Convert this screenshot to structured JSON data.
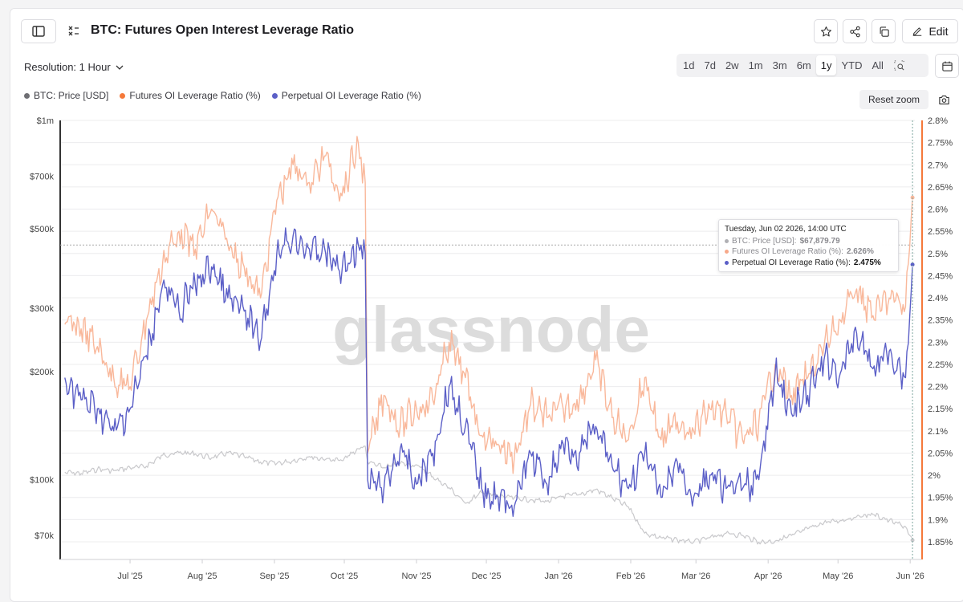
{
  "header": {
    "title": "BTC: Futures Open Interest Leverage Ratio",
    "edit_label": "Edit",
    "resolution_label": "Resolution: 1 Hour",
    "ranges": [
      "1d",
      "7d",
      "2w",
      "1m",
      "3m",
      "6m",
      "1y",
      "YTD",
      "All"
    ],
    "active_range": "1y",
    "reset_zoom_label": "Reset zoom",
    "watermark": "glassnode"
  },
  "legend": [
    {
      "label": "BTC: Price [USD]",
      "color": "#6e6e73"
    },
    {
      "label": "Futures OI Leverage Ratio (%)",
      "color": "#f5793a"
    },
    {
      "label": "Perpetual OI Leverage Ratio (%)",
      "color": "#5b5fc7"
    }
  ],
  "tooltip": {
    "date": "Tuesday, Jun 02 2026, 14:00 UTC",
    "rows": [
      {
        "label": "BTC: Price [USD]:",
        "value": "$67,879.79",
        "color": "#b0b0b4"
      },
      {
        "label": "Futures OI Leverage Ratio (%):",
        "value": "2.626%",
        "color": "#f7a98a"
      },
      {
        "label": "Perpetual OI Leverage Ratio (%):",
        "value": "2.475%",
        "color": "#5b5fc7"
      }
    ]
  },
  "chart_data": {
    "type": "line",
    "left_axis": {
      "label": "",
      "scale": "log",
      "ticks": [
        {
          "label": "$1m",
          "value": 1000000
        },
        {
          "label": "$700k",
          "value": 700000
        },
        {
          "label": "$500k",
          "value": 500000
        },
        {
          "label": "$300k",
          "value": 300000
        },
        {
          "label": "$200k",
          "value": 200000
        },
        {
          "label": "$100k",
          "value": 100000
        },
        {
          "label": "$70k",
          "value": 70000
        }
      ]
    },
    "right_axis": {
      "label": "",
      "range": [
        1.83,
        2.8
      ],
      "ticks": [
        "2.8%",
        "2.75%",
        "2.7%",
        "2.65%",
        "2.6%",
        "2.55%",
        "2.5%",
        "2.45%",
        "2.4%",
        "2.35%",
        "2.3%",
        "2.25%",
        "2.2%",
        "2.15%",
        "2.1%",
        "2.05%",
        "2%",
        "1.95%",
        "1.9%",
        "1.85%"
      ],
      "tick_values": [
        2.8,
        2.75,
        2.7,
        2.65,
        2.6,
        2.55,
        2.5,
        2.45,
        2.4,
        2.35,
        2.3,
        2.25,
        2.2,
        2.15,
        2.1,
        2.05,
        2.0,
        1.95,
        1.9,
        1.85
      ]
    },
    "x_axis": {
      "labels": [
        "Jul '25",
        "Aug '25",
        "Sep '25",
        "Oct '25",
        "Nov '25",
        "Dec '25",
        "Jan '26",
        "Feb '26",
        "Mar '26",
        "Apr '26",
        "May '26",
        "Jun '26"
      ],
      "label_dates": [
        "2025-07-01",
        "2025-08-01",
        "2025-09-01",
        "2025-10-01",
        "2025-11-01",
        "2025-12-01",
        "2026-01-01",
        "2026-02-01",
        "2026-03-01",
        "2026-04-01",
        "2026-05-01",
        "2026-06-01"
      ]
    },
    "dates": [
      "2025-06-03",
      "2025-06-10",
      "2025-06-17",
      "2025-06-24",
      "2025-07-01",
      "2025-07-08",
      "2025-07-15",
      "2025-07-22",
      "2025-07-29",
      "2025-08-05",
      "2025-08-12",
      "2025-08-19",
      "2025-08-26",
      "2025-09-02",
      "2025-09-09",
      "2025-09-16",
      "2025-09-23",
      "2025-09-30",
      "2025-10-07",
      "2025-10-10",
      "2025-10-11",
      "2025-10-18",
      "2025-10-25",
      "2025-11-01",
      "2025-11-08",
      "2025-11-15",
      "2025-11-22",
      "2025-11-29",
      "2025-12-06",
      "2025-12-13",
      "2025-12-20",
      "2025-12-27",
      "2026-01-03",
      "2026-01-10",
      "2026-01-17",
      "2026-01-24",
      "2026-01-31",
      "2026-02-07",
      "2026-02-14",
      "2026-02-21",
      "2026-02-28",
      "2026-03-07",
      "2026-03-14",
      "2026-03-21",
      "2026-03-28",
      "2026-04-04",
      "2026-04-11",
      "2026-04-18",
      "2026-04-25",
      "2026-05-02",
      "2026-05-09",
      "2026-05-16",
      "2026-05-23",
      "2026-05-30",
      "2026-06-02"
    ],
    "series": [
      {
        "name": "BTC: Price [USD]",
        "axis": "left",
        "color": "#c9c9cc",
        "values": [
          105000,
          104000,
          107000,
          106000,
          108000,
          109000,
          117000,
          119000,
          118000,
          115000,
          119000,
          116000,
          112000,
          111000,
          113000,
          116000,
          114000,
          113000,
          122000,
          124000,
          112000,
          108000,
          111000,
          110000,
          102000,
          95000,
          86000,
          92000,
          90000,
          89000,
          88000,
          87000,
          90000,
          91000,
          94000,
          89000,
          84000,
          71000,
          69000,
          68000,
          67000,
          69000,
          71000,
          70000,
          67000,
          67500,
          70000,
          73000,
          76000,
          77000,
          79000,
          80000,
          77000,
          74000,
          67879.79
        ]
      },
      {
        "name": "Futures OI Leverage Ratio (%)",
        "axis": "right",
        "color": "#f9b89b",
        "values": [
          2.34,
          2.33,
          2.29,
          2.22,
          2.2,
          2.35,
          2.48,
          2.55,
          2.51,
          2.6,
          2.52,
          2.47,
          2.4,
          2.62,
          2.7,
          2.66,
          2.72,
          2.63,
          2.75,
          2.66,
          2.05,
          2.18,
          2.11,
          2.15,
          2.17,
          2.3,
          2.22,
          2.09,
          2.07,
          2.04,
          2.16,
          2.13,
          2.15,
          2.17,
          2.26,
          2.13,
          2.08,
          2.22,
          2.08,
          2.12,
          2.1,
          2.15,
          2.14,
          2.08,
          2.12,
          2.25,
          2.18,
          2.22,
          2.29,
          2.35,
          2.42,
          2.36,
          2.4,
          2.38,
          2.626
        ]
      },
      {
        "name": "Perpetual OI Leverage Ratio (%)",
        "axis": "right",
        "color": "#5b5fc7",
        "values": [
          2.22,
          2.17,
          2.15,
          2.1,
          2.15,
          2.27,
          2.43,
          2.37,
          2.43,
          2.47,
          2.4,
          2.37,
          2.3,
          2.5,
          2.54,
          2.51,
          2.5,
          2.46,
          2.52,
          2.5,
          1.99,
          1.97,
          2.06,
          1.98,
          2.05,
          2.2,
          2.11,
          1.97,
          1.95,
          1.93,
          2.05,
          1.98,
          2.07,
          2.05,
          2.11,
          2.02,
          1.97,
          2.05,
          1.95,
          2.03,
          1.95,
          2.0,
          1.97,
          1.97,
          1.99,
          2.23,
          2.14,
          2.18,
          2.26,
          2.23,
          2.32,
          2.24,
          2.28,
          2.22,
          2.475
        ]
      }
    ]
  }
}
